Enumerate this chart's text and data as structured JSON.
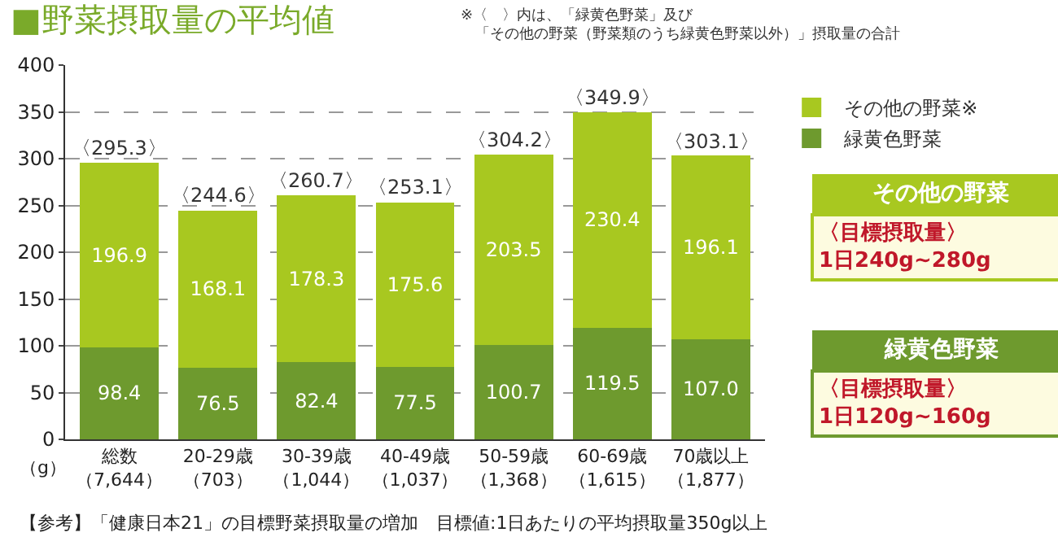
{
  "chart_data": {
    "type": "bar",
    "title": "■野菜摂取量の平均値",
    "ylabel": "（g）",
    "categories": [
      "総数（7,644）",
      "20-29歳（703）",
      "30-39歳（1,044）",
      "40-49歳（1,037）",
      "50-59歳（1,368）",
      "60-69歳（1,615）",
      "70歳以上（1,877）"
    ],
    "series": [
      {
        "name": "緑黄色野菜",
        "color": "#6e9a2e",
        "values": [
          98.4,
          76.5,
          82.4,
          77.5,
          100.7,
          119.5,
          107.0
        ],
        "value_labels": [
          "98.4",
          "76.5",
          "82.4",
          "77.5",
          "100.7",
          "119.5",
          "107.0"
        ]
      },
      {
        "name": "その他の野菜※",
        "color": "#a8c820",
        "values": [
          196.9,
          168.1,
          178.3,
          175.6,
          203.5,
          230.4,
          196.1
        ],
        "value_labels": [
          "196.9",
          "168.1",
          "178.3",
          "175.6",
          "203.5",
          "230.4",
          "196.1"
        ]
      }
    ],
    "stacked": true,
    "totals": [
      "〈295.3〉",
      "〈244.6〉",
      "〈260.7〉",
      "〈253.1〉",
      "〈304.2〉",
      "〈349.9〉",
      "〈303.1〉"
    ],
    "ylim": [
      0,
      400
    ],
    "yticks": [
      0,
      50,
      100,
      150,
      200,
      250,
      300,
      350,
      400
    ],
    "grid": "y",
    "legend": "top right",
    "annotations": [
      "※〈　〉内は、「緑黄色野菜」及び「その他の野菜（野菜類のうち緑黄色野菜以外）」摂取量の合計",
      "【参考】「健康日本21」の目標野菜摂取量の増加　目標値:1日あたりの平均摂取量350g以上",
      "その他の野菜",
      "〈目標摂取量〉\n1日240g~280g",
      "緑黄色野菜",
      "〈目標摂取量〉\n1日120g~160g"
    ]
  }
}
